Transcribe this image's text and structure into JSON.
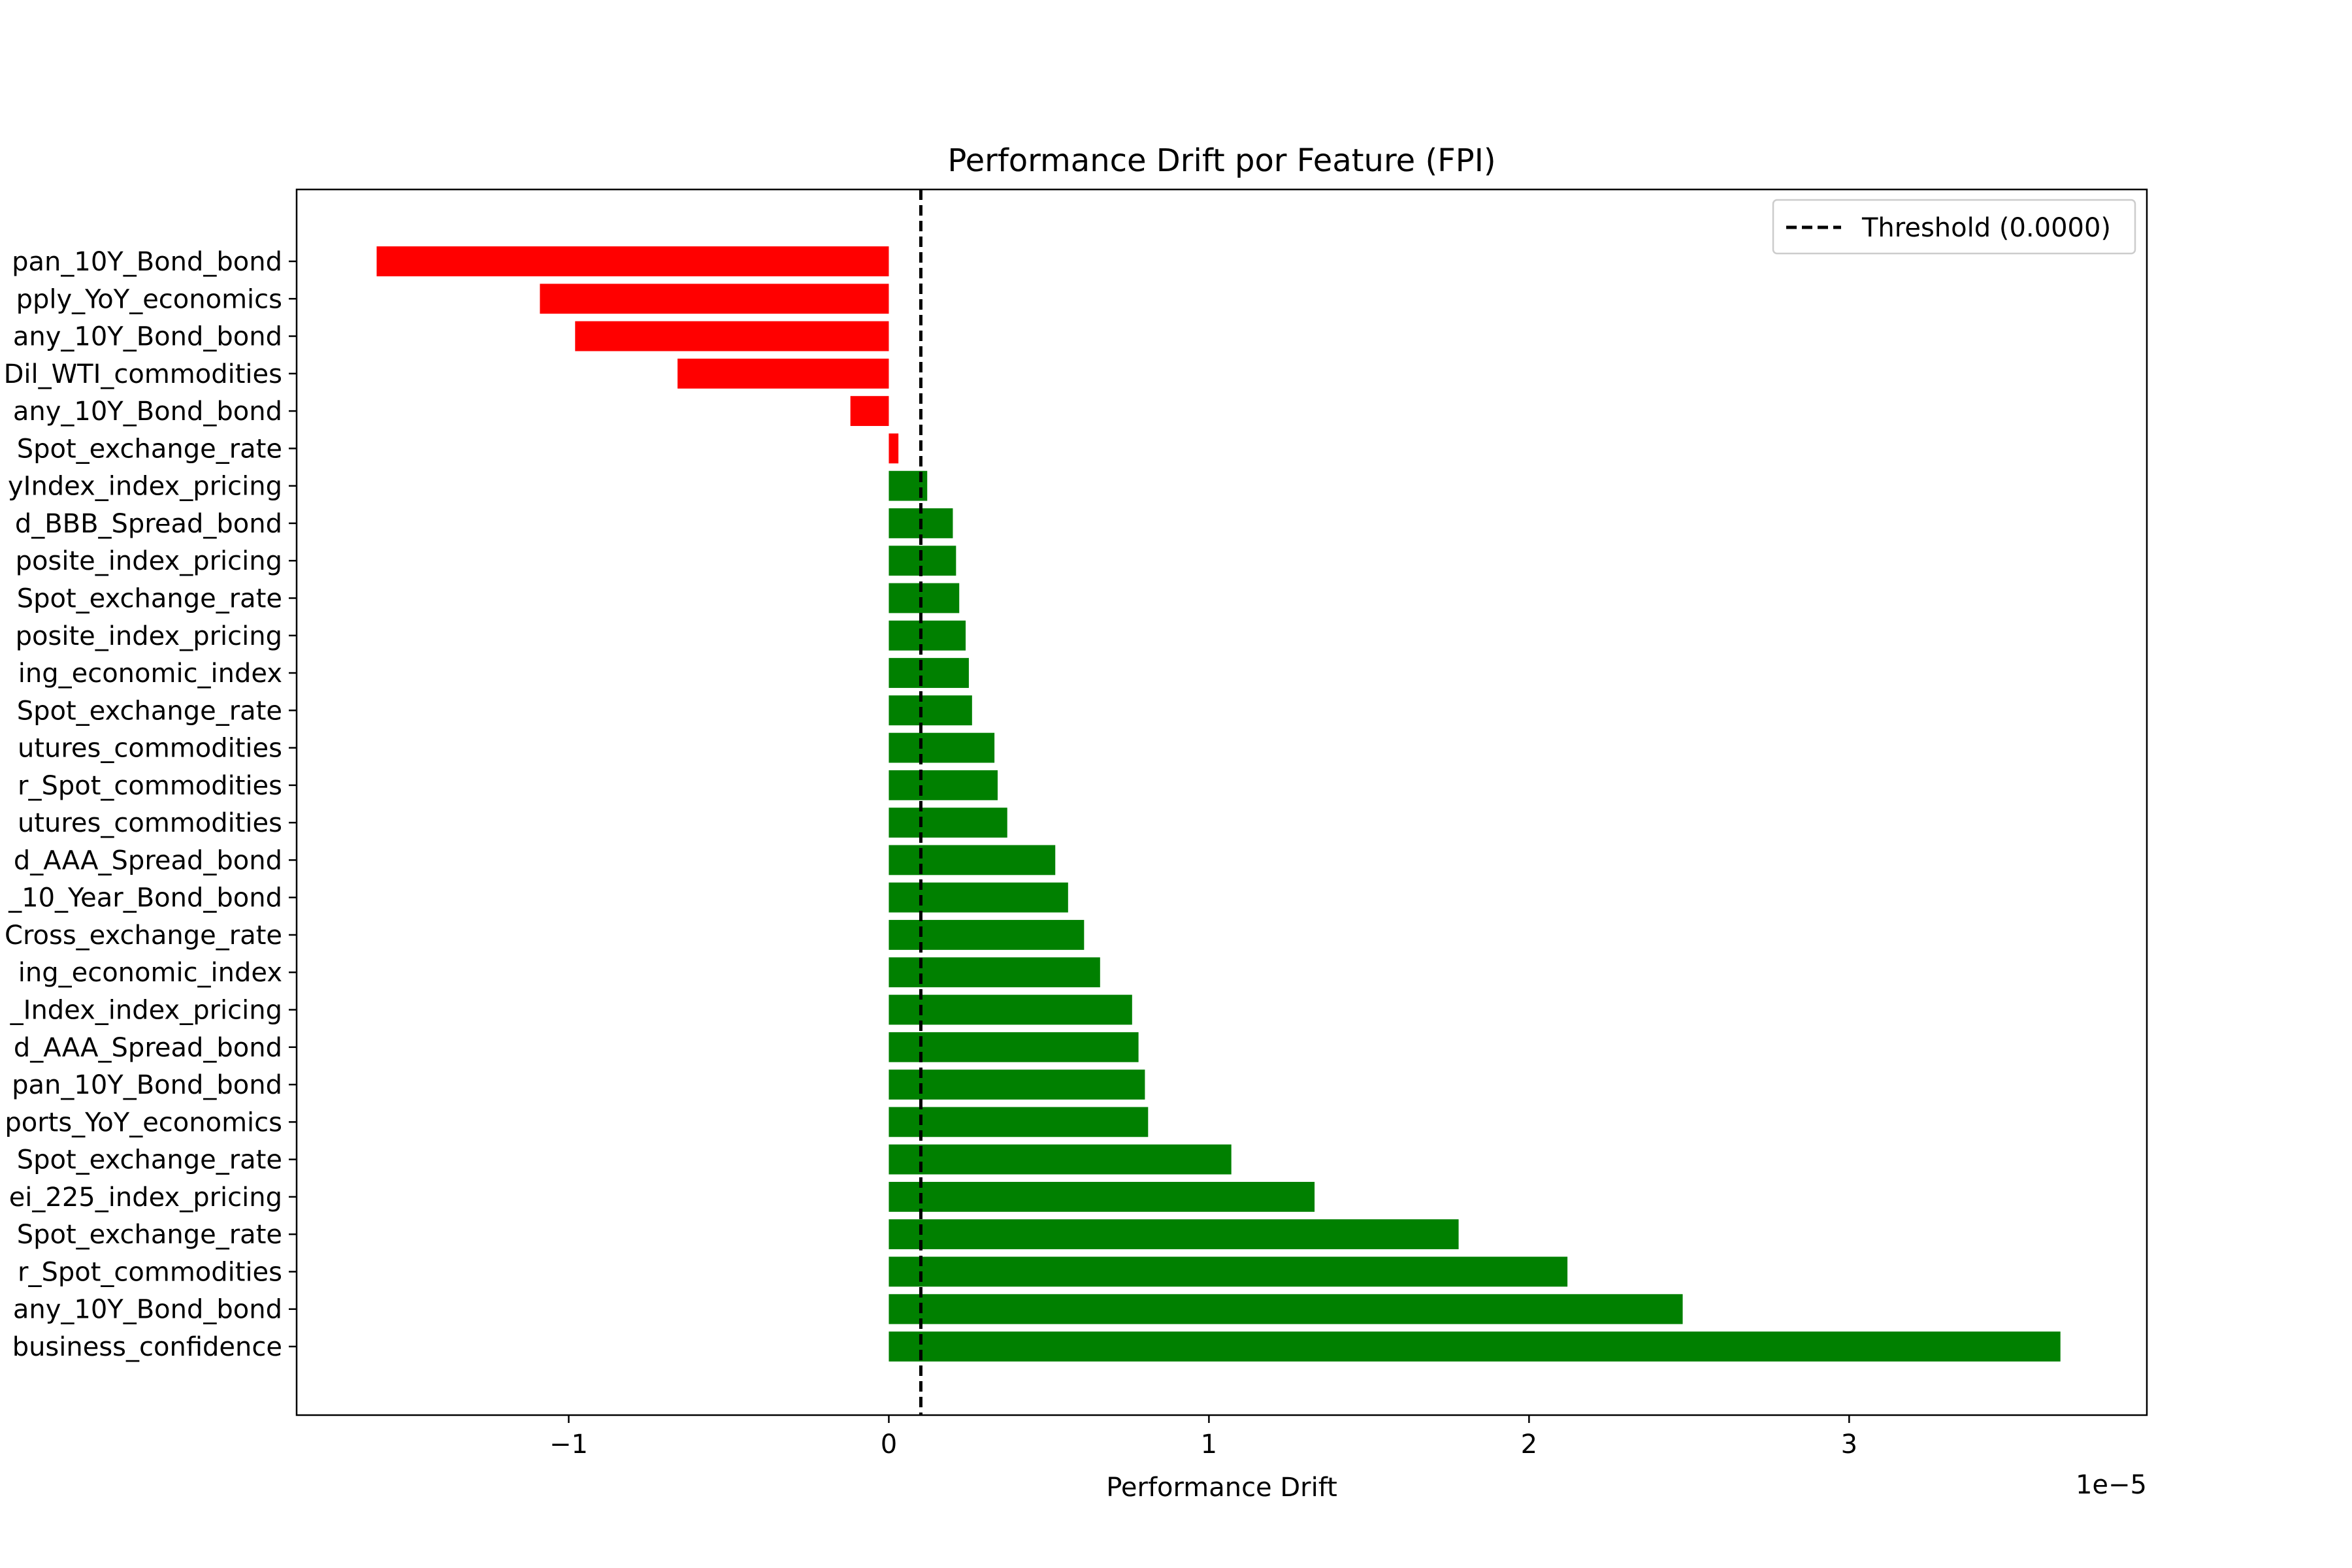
{
  "chart_data": {
    "type": "bar",
    "orientation": "horizontal",
    "title": "Performance Drift por Feature (FPI)",
    "xlabel": "Performance Drift",
    "ylabel": "",
    "x_scale_label": "1e−5",
    "x_tick_labels": [
      "−1",
      "0",
      "1",
      "2",
      "3"
    ],
    "x_ticks": [
      -1,
      0,
      1,
      2,
      3
    ],
    "xlim": [
      -1.85,
      3.93
    ],
    "x_multiplier": 1e-05,
    "grid": false,
    "legend_placement": "upper-right",
    "categories": [
      "pan_10Y_Bond_bond",
      "pply_YoY_economics",
      "any_10Y_Bond_bond",
      "Dil_WTI_commodities",
      "any_10Y_Bond_bond",
      "Spot_exchange_rate",
      "yIndex_index_pricing",
      "d_BBB_Spread_bond",
      "posite_index_pricing",
      "Spot_exchange_rate",
      "posite_index_pricing",
      "ing_economic_index",
      "Spot_exchange_rate",
      "utures_commodities",
      "r_Spot_commodities",
      "utures_commodities",
      "d_AAA_Spread_bond",
      "_10_Year_Bond_bond",
      "Cross_exchange_rate",
      "ing_economic_index",
      "_Index_index_pricing",
      "d_AAA_Spread_bond",
      "pan_10Y_Bond_bond",
      "ports_YoY_economics",
      "Spot_exchange_rate",
      "ei_225_index_pricing",
      "Spot_exchange_rate",
      "r_Spot_commodities",
      "any_10Y_Bond_bond",
      "business_confidence"
    ],
    "values": [
      -1.6,
      -1.09,
      -0.98,
      -0.66,
      -0.12,
      0.03,
      0.12,
      0.2,
      0.21,
      0.22,
      0.24,
      0.25,
      0.26,
      0.33,
      0.34,
      0.37,
      0.52,
      0.56,
      0.61,
      0.66,
      0.76,
      0.78,
      0.8,
      0.81,
      1.07,
      1.33,
      1.78,
      2.12,
      2.48,
      3.66
    ],
    "bar_colors": [
      "#ff0000",
      "#ff0000",
      "#ff0000",
      "#ff0000",
      "#ff0000",
      "#ff0000",
      "#008000",
      "#008000",
      "#008000",
      "#008000",
      "#008000",
      "#008000",
      "#008000",
      "#008000",
      "#008000",
      "#008000",
      "#008000",
      "#008000",
      "#008000",
      "#008000",
      "#008000",
      "#008000",
      "#008000",
      "#008000",
      "#008000",
      "#008000",
      "#008000",
      "#008000",
      "#008000",
      "#008000"
    ],
    "threshold": {
      "label": "Threshold (0.0000)",
      "value": 0.1,
      "color": "#000000",
      "style": "dashed"
    }
  }
}
